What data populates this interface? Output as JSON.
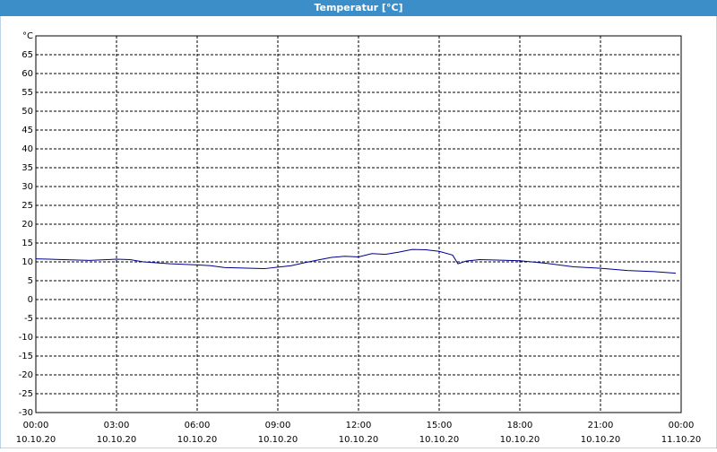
{
  "chart_data": {
    "type": "line",
    "title": "Temperatur [°C]",
    "x": [
      0,
      0.5,
      1,
      2,
      3,
      3.5,
      4,
      5,
      6,
      6.5,
      7,
      8,
      8.5,
      9,
      9.5,
      10,
      10.5,
      11,
      11.5,
      12,
      12.5,
      13,
      13.5,
      14,
      14.5,
      15,
      15.5,
      15.7,
      16,
      16.5,
      17,
      18,
      19,
      20,
      21,
      22,
      23,
      23.8
    ],
    "series": [
      {
        "color": "#00008b",
        "values": [
          10.8,
          10.7,
          10.6,
          10.4,
          10.7,
          10.6,
          10.0,
          9.5,
          9.2,
          9.0,
          8.5,
          8.3,
          8.2,
          8.6,
          9.0,
          9.8,
          10.5,
          11.2,
          11.5,
          11.3,
          12.2,
          12.0,
          12.6,
          13.3,
          13.2,
          12.8,
          11.8,
          9.5,
          10.2,
          10.6,
          10.5,
          10.3,
          9.6,
          8.7,
          8.3,
          7.7,
          7.4,
          7.0
        ]
      }
    ],
    "xlim": [
      0,
      24
    ],
    "xticks": [
      {
        "value": 0,
        "label": "00:00"
      },
      {
        "value": 3,
        "label": "03:00"
      },
      {
        "value": 6,
        "label": "06:00"
      },
      {
        "value": 9,
        "label": "09:00"
      },
      {
        "value": 12,
        "label": "12:00"
      },
      {
        "value": 15,
        "label": "15:00"
      },
      {
        "value": 18,
        "label": "18:00"
      },
      {
        "value": 21,
        "label": "21:00"
      },
      {
        "value": 24,
        "label": "00:00"
      }
    ],
    "xtick_dates": [
      "10.10.20",
      "10.10.20",
      "10.10.20",
      "10.10.20",
      "10.10.20",
      "10.10.20",
      "10.10.20",
      "10.10.20",
      "11.10.20"
    ],
    "ylim": [
      -30,
      70
    ],
    "yticks": [
      -30,
      -25,
      -20,
      -15,
      -10,
      -5,
      0,
      5,
      10,
      15,
      20,
      25,
      30,
      35,
      40,
      45,
      50,
      55,
      60,
      65,
      {
        "value": 70,
        "label": "°C"
      }
    ],
    "grid": true
  }
}
